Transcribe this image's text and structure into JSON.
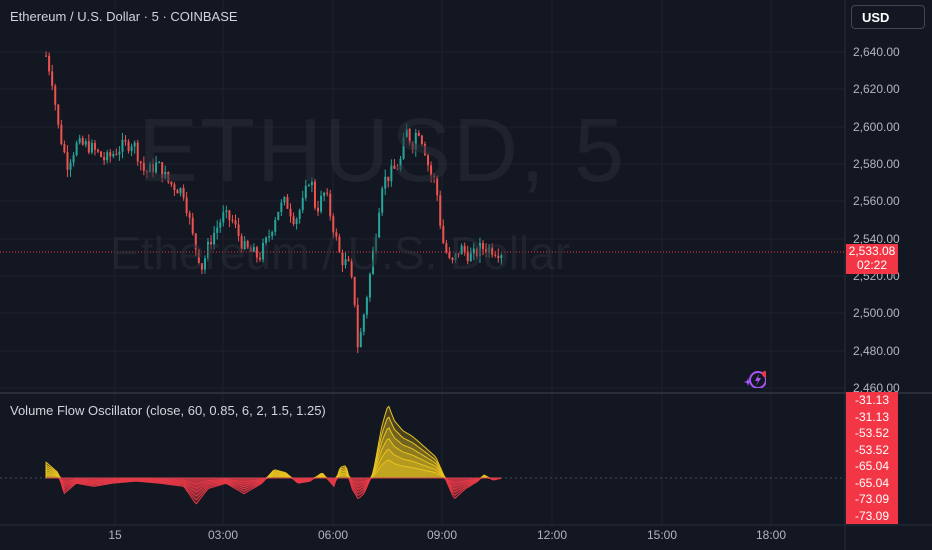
{
  "header": {
    "title": "Ethereum / U.S. Dollar · 5 · COINBASE",
    "currency_button": "USD"
  },
  "watermark": {
    "symbol": "ETHUSD, 5",
    "name": "Ethereum / U.S. Dollar"
  },
  "price_axis": {
    "labels": [
      "2,640.00",
      "2,620.00",
      "2,600.00",
      "2,580.00",
      "2,560.00",
      "2,540.00",
      "2,520.00",
      "2,500.00",
      "2,480.00",
      "2,460.00"
    ],
    "current_price": "2,533.08",
    "countdown": "02:22"
  },
  "time_axis": {
    "labels": [
      "15",
      "03:00",
      "06:00",
      "09:00",
      "12:00",
      "15:00",
      "18:00"
    ]
  },
  "indicator": {
    "title": "Volume Flow Oscillator (close, 60, 0.85, 6, 2, 1.5, 1.25)",
    "values": [
      "-31.13",
      "-31.13",
      "-53.52",
      "-53.52",
      "-65.04",
      "-65.04",
      "-73.09",
      "-73.09"
    ]
  },
  "colors": {
    "up": "#26a69a",
    "down": "#ef5350",
    "bg": "#131722",
    "badge": "#f23645",
    "osc_up": "#e8c21f",
    "osc_down": "#e53946"
  },
  "chart_data": {
    "type": "candlestick",
    "title": "Ethereum / U.S. Dollar · 5 · COINBASE",
    "ylim": [
      2460,
      2645
    ],
    "x_unit": "hours from 00:00 on 15th",
    "price_anchors": [
      [
        -1.88,
        2638
      ],
      [
        -1.71,
        2625
      ],
      [
        -1.55,
        2600
      ],
      [
        -1.31,
        2580
      ],
      [
        -1.06,
        2590
      ],
      [
        -0.74,
        2590
      ],
      [
        -0.25,
        2582
      ],
      [
        0.08,
        2588
      ],
      [
        0.49,
        2592
      ],
      [
        0.82,
        2575
      ],
      [
        1.15,
        2580
      ],
      [
        1.47,
        2570
      ],
      [
        1.88,
        2565
      ],
      [
        2.13,
        2540
      ],
      [
        2.37,
        2525
      ],
      [
        2.62,
        2540
      ],
      [
        2.94,
        2552
      ],
      [
        3.19,
        2550
      ],
      [
        3.52,
        2535
      ],
      [
        3.93,
        2530
      ],
      [
        4.17,
        2540
      ],
      [
        4.42,
        2555
      ],
      [
        4.66,
        2560
      ],
      [
        4.91,
        2550
      ],
      [
        5.15,
        2560
      ],
      [
        5.32,
        2575
      ],
      [
        5.48,
        2555
      ],
      [
        5.73,
        2565
      ],
      [
        5.97,
        2545
      ],
      [
        6.14,
        2530
      ],
      [
        6.38,
        2525
      ],
      [
        6.55,
        2505
      ],
      [
        6.63,
        2480
      ],
      [
        6.79,
        2500
      ],
      [
        6.95,
        2520
      ],
      [
        7.09,
        2540
      ],
      [
        7.28,
        2570
      ],
      [
        7.53,
        2575
      ],
      [
        7.77,
        2580
      ],
      [
        7.94,
        2598
      ],
      [
        8.1,
        2590
      ],
      [
        8.26,
        2600
      ],
      [
        8.43,
        2590
      ],
      [
        8.59,
        2575
      ],
      [
        8.75,
        2570
      ],
      [
        8.92,
        2540
      ],
      [
        9.16,
        2525
      ],
      [
        9.41,
        2535
      ],
      [
        9.74,
        2530
      ],
      [
        9.98,
        2535
      ],
      [
        10.23,
        2535
      ],
      [
        10.55,
        2533
      ]
    ],
    "oscillator_anchors": [
      [
        -1.88,
        15
      ],
      [
        -1.55,
        5
      ],
      [
        -1.39,
        -15
      ],
      [
        -1.06,
        -5
      ],
      [
        -0.57,
        -8
      ],
      [
        -0.08,
        -5
      ],
      [
        0.57,
        -3
      ],
      [
        1.23,
        -5
      ],
      [
        1.88,
        -8
      ],
      [
        2.21,
        -25
      ],
      [
        2.54,
        -10
      ],
      [
        3.03,
        -5
      ],
      [
        3.52,
        -15
      ],
      [
        4.01,
        -5
      ],
      [
        4.34,
        8
      ],
      [
        4.66,
        5
      ],
      [
        4.99,
        -5
      ],
      [
        5.32,
        -3
      ],
      [
        5.65,
        5
      ],
      [
        5.97,
        -8
      ],
      [
        6.14,
        10
      ],
      [
        6.3,
        12
      ],
      [
        6.46,
        -10
      ],
      [
        6.63,
        -20
      ],
      [
        6.79,
        -15
      ],
      [
        7.04,
        5
      ],
      [
        7.28,
        50
      ],
      [
        7.45,
        70
      ],
      [
        7.61,
        55
      ],
      [
        7.85,
        45
      ],
      [
        8.1,
        40
      ],
      [
        8.43,
        30
      ],
      [
        8.75,
        20
      ],
      [
        9.0,
        0
      ],
      [
        9.25,
        -20
      ],
      [
        9.57,
        -10
      ],
      [
        9.9,
        -3
      ],
      [
        10.06,
        3
      ],
      [
        10.31,
        -2
      ],
      [
        10.55,
        0
      ]
    ]
  }
}
